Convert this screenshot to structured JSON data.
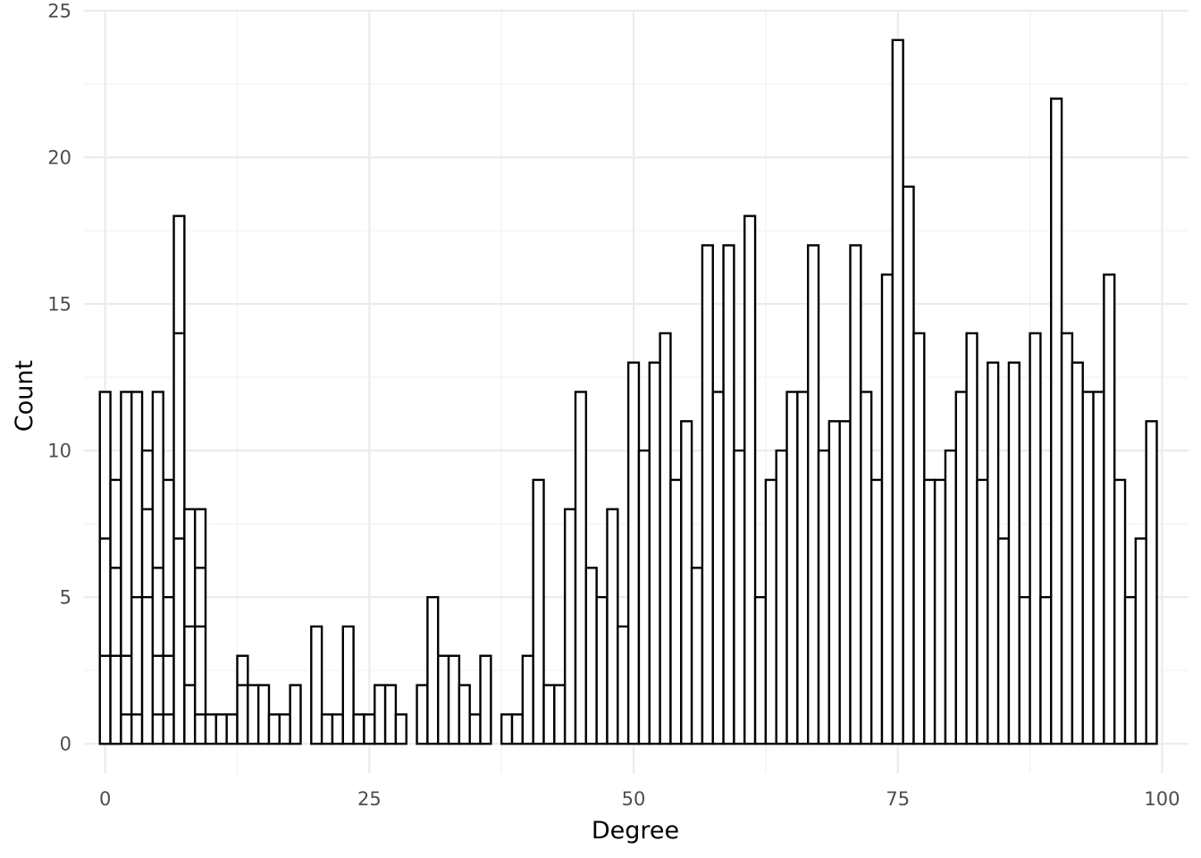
{
  "chart_data": {
    "type": "bar",
    "style": "histogram",
    "xlabel": "Degree",
    "ylabel": "Count",
    "xlim": [
      -2,
      102.5
    ],
    "ylim": [
      -1,
      25
    ],
    "bin_width": 1,
    "x_ticks": [
      0,
      25,
      50,
      75,
      100
    ],
    "y_ticks": [
      0,
      5,
      10,
      15,
      20,
      25
    ],
    "grid": true,
    "x": [
      0,
      1,
      2,
      3,
      4,
      5,
      6,
      7,
      8,
      9,
      10,
      11,
      12,
      13,
      14,
      15,
      16,
      17,
      18,
      19,
      20,
      21,
      22,
      23,
      24,
      25,
      26,
      27,
      28,
      29,
      30,
      31,
      32,
      33,
      34,
      35,
      36,
      37,
      38,
      39,
      40,
      41,
      42,
      43,
      44,
      45,
      46,
      47,
      48,
      49,
      50,
      51,
      52,
      53,
      54,
      55,
      56,
      57,
      58,
      59,
      60,
      61,
      62,
      63,
      64,
      65,
      66,
      67,
      68,
      69,
      70,
      71,
      72,
      73,
      74,
      75,
      76,
      77,
      78,
      79,
      80,
      81,
      82,
      83,
      84,
      85,
      86,
      87,
      88,
      89,
      90,
      91,
      92,
      93,
      94,
      95,
      96,
      97,
      98,
      99
    ],
    "values": [
      12,
      9,
      12,
      12,
      10,
      12,
      9,
      18,
      8,
      8,
      1,
      1,
      1,
      3,
      2,
      2,
      1,
      1,
      2,
      0,
      4,
      1,
      1,
      4,
      1,
      1,
      2,
      2,
      1,
      0,
      2,
      5,
      3,
      3,
      2,
      1,
      3,
      0,
      1,
      1,
      3,
      9,
      2,
      2,
      8,
      12,
      6,
      5,
      8,
      4,
      13,
      10,
      13,
      14,
      9,
      11,
      6,
      17,
      12,
      17,
      10,
      18,
      5,
      9,
      10,
      12,
      12,
      17,
      10,
      11,
      11,
      17,
      12,
      9,
      16,
      24,
      19,
      14,
      9,
      9,
      10,
      12,
      14,
      9,
      13,
      7,
      13,
      5,
      14,
      5,
      22,
      14,
      13,
      12,
      12,
      16,
      9,
      5,
      7,
      11
    ],
    "segments": [
      [
        0,
        3,
        7
      ],
      [
        0,
        3,
        6
      ],
      [
        1,
        3
      ],
      [
        1,
        5
      ],
      [
        5,
        8
      ],
      [
        1,
        3,
        6
      ],
      [
        1,
        3,
        5
      ],
      [
        7,
        14
      ],
      [
        2,
        4
      ],
      [
        1,
        4,
        6
      ],
      [],
      [],
      [],
      [
        2
      ],
      [],
      [],
      [],
      [],
      [],
      [],
      [],
      [],
      [],
      [],
      [],
      [],
      [],
      [],
      [],
      [],
      [],
      [],
      [],
      [],
      [],
      [],
      [],
      [],
      [],
      [],
      [],
      [],
      [],
      [],
      [],
      [],
      [],
      [],
      [],
      [],
      [],
      [],
      [],
      [],
      [],
      [],
      [],
      [],
      [],
      [],
      [],
      [],
      [],
      [],
      [],
      [],
      [],
      [],
      [],
      [],
      [],
      [],
      [],
      [],
      [],
      [],
      [],
      [],
      [],
      [],
      [],
      [],
      [],
      [],
      [],
      [],
      [],
      [],
      [],
      [],
      [],
      [],
      [],
      [],
      [],
      [],
      [],
      [],
      [],
      []
    ]
  }
}
